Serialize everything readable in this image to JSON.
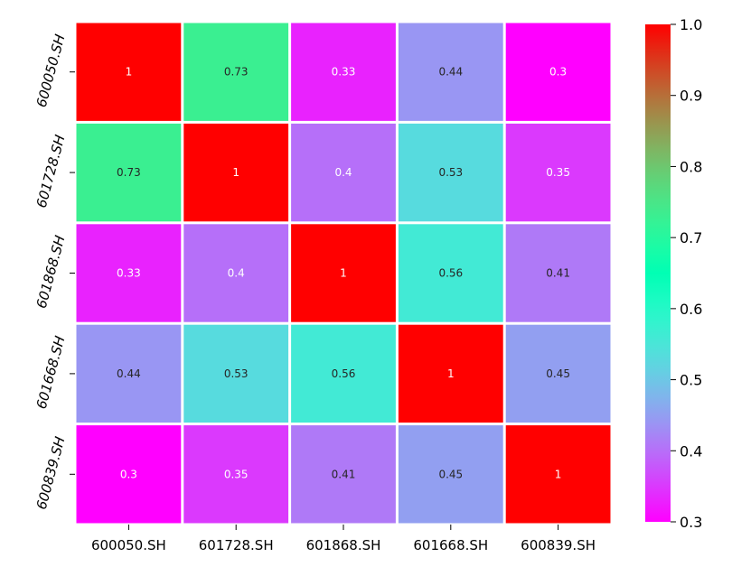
{
  "chart_data": {
    "type": "heatmap",
    "title": "",
    "xlabel": "",
    "ylabel": "",
    "x_labels": [
      "600050.SH",
      "601728.SH",
      "601868.SH",
      "601668.SH",
      "600839.SH"
    ],
    "y_labels": [
      "600050.SH",
      "601728.SH",
      "601868.SH",
      "601668.SH",
      "600839.SH"
    ],
    "values": [
      [
        1,
        0.73,
        0.33,
        0.44,
        0.3
      ],
      [
        0.73,
        1,
        0.4,
        0.53,
        0.35
      ],
      [
        0.33,
        0.4,
        1,
        0.56,
        0.41
      ],
      [
        0.44,
        0.53,
        0.56,
        1,
        0.45
      ],
      [
        0.3,
        0.35,
        0.41,
        0.45,
        1
      ]
    ],
    "annotations": [
      [
        "1",
        "0.73",
        "0.33",
        "0.44",
        "0.3"
      ],
      [
        "0.73",
        "1",
        "0.4",
        "0.53",
        "0.35"
      ],
      [
        "0.33",
        "0.4",
        "1",
        "0.56",
        "0.41"
      ],
      [
        "0.44",
        "0.53",
        "0.56",
        "1",
        "0.45"
      ],
      [
        "0.3",
        "0.35",
        "0.41",
        "0.45",
        "1"
      ]
    ],
    "colormap": "rainbow",
    "vmin": 0.3,
    "vmax": 1.0,
    "colorbar_ticks": [
      0.3,
      0.4,
      0.5,
      0.6,
      0.7,
      0.8,
      0.9,
      1.0
    ],
    "colorbar_tick_labels": [
      "0.3",
      "0.4",
      "0.5",
      "0.6",
      "0.7",
      "0.8",
      "0.9",
      "1.0"
    ]
  }
}
